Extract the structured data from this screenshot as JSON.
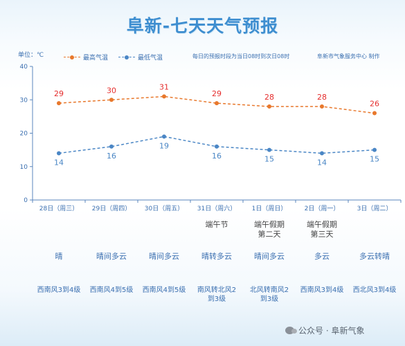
{
  "title": "阜新-七天天气预报",
  "unit_label": "单位：℃",
  "legend": {
    "high": "最高气温",
    "low": "最低气温"
  },
  "note": "每日的预报时段为当日08时到次日08时",
  "source": "阜新市气象服务中心 制作",
  "holidays": [
    "",
    "",
    "",
    "端午节",
    "端午假期\n第二天",
    "端午假期\n第三天",
    ""
  ],
  "weather": [
    "晴",
    "晴间多云",
    "晴间多云",
    "晴转多云",
    "晴间多云",
    "多云",
    "多云转晴"
  ],
  "wind": [
    "西南风3到4级",
    "西南风4到5级",
    "西南风4到5级",
    "南风转北风2\n到3级",
    "北风转南风2\n到3级",
    "西南风3到4级",
    "西北风3到4级"
  ],
  "watermark": "公众号 · 阜新气象",
  "colors": {
    "high": "#e8782c",
    "low": "#4a86c5",
    "high_label": "#e52d2d",
    "axis": "#3a6fb0"
  },
  "chart_data": {
    "type": "line",
    "categories": [
      "28日（周三）",
      "29日（周四）",
      "30日（周五）",
      "31日（周六）",
      "1日（周日）",
      "2日（周一）",
      "3日（周二）"
    ],
    "series": [
      {
        "name": "最高气温",
        "values": [
          29,
          30,
          31,
          29,
          28,
          28,
          26
        ]
      },
      {
        "name": "最低气温",
        "values": [
          14,
          16,
          19,
          16,
          15,
          14,
          15
        ]
      }
    ],
    "ylim": [
      0,
      40
    ],
    "yticks": [
      0,
      10,
      20,
      30,
      40
    ],
    "legend_position": "top-left",
    "grid": false
  }
}
